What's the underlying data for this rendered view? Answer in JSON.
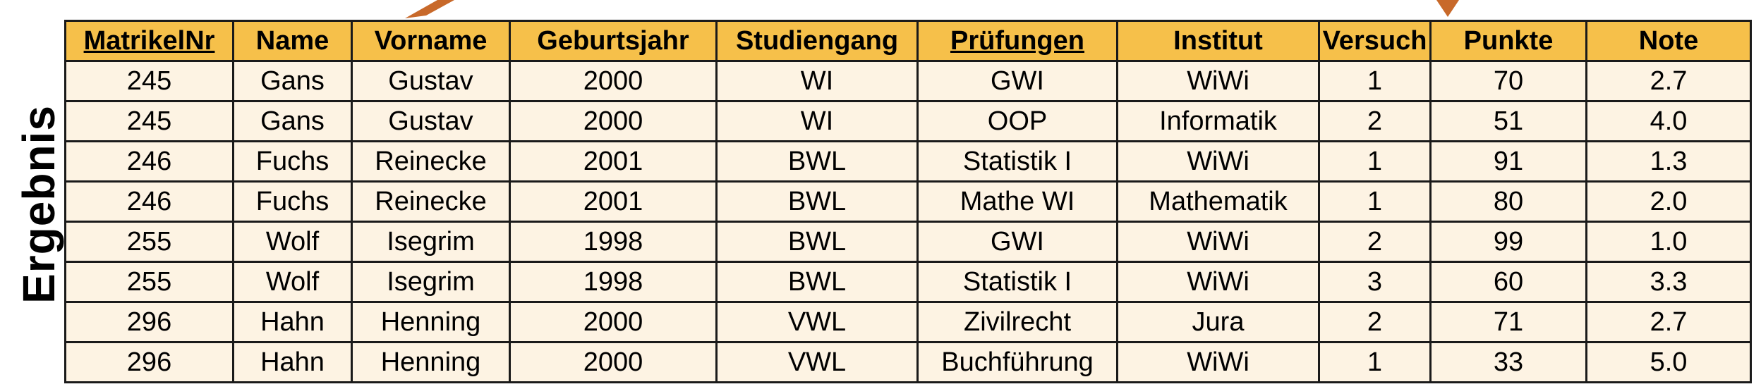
{
  "side_label": "Ergebnis",
  "colors": {
    "header_bg": "#f6c04a",
    "row_bg": "#fdf3e3",
    "arrow": "#c8692a",
    "border": "#1a1a1a"
  },
  "table": {
    "columns": [
      {
        "label": "MatrikelNr",
        "key": true
      },
      {
        "label": "Name",
        "key": false
      },
      {
        "label": "Vorname",
        "key": false
      },
      {
        "label": "Geburtsjahr",
        "key": false
      },
      {
        "label": "Studiengang",
        "key": false
      },
      {
        "label": "Prüfungen",
        "key": true
      },
      {
        "label": "Institut",
        "key": false
      },
      {
        "label": "Versuch",
        "key": false
      },
      {
        "label": "Punkte",
        "key": false
      },
      {
        "label": "Note",
        "key": false
      }
    ],
    "rows": [
      [
        "245",
        "Gans",
        "Gustav",
        "2000",
        "WI",
        "GWI",
        "WiWi",
        "1",
        "70",
        "2.7"
      ],
      [
        "245",
        "Gans",
        "Gustav",
        "2000",
        "WI",
        "OOP",
        "Informatik",
        "2",
        "51",
        "4.0"
      ],
      [
        "246",
        "Fuchs",
        "Reinecke",
        "2001",
        "BWL",
        "Statistik I",
        "WiWi",
        "1",
        "91",
        "1.3"
      ],
      [
        "246",
        "Fuchs",
        "Reinecke",
        "2001",
        "BWL",
        "Mathe WI",
        "Mathematik",
        "1",
        "80",
        "2.0"
      ],
      [
        "255",
        "Wolf",
        "Isegrim",
        "1998",
        "BWL",
        "GWI",
        "WiWi",
        "2",
        "99",
        "1.0"
      ],
      [
        "255",
        "Wolf",
        "Isegrim",
        "1998",
        "BWL",
        "Statistik I",
        "WiWi",
        "3",
        "60",
        "3.3"
      ],
      [
        "296",
        "Hahn",
        "Henning",
        "2000",
        "VWL",
        "Zivilrecht",
        "Jura",
        "2",
        "71",
        "2.7"
      ],
      [
        "296",
        "Hahn",
        "Henning",
        "2000",
        "VWL",
        "Buchführung",
        "WiWi",
        "1",
        "33",
        "5.0"
      ]
    ]
  }
}
